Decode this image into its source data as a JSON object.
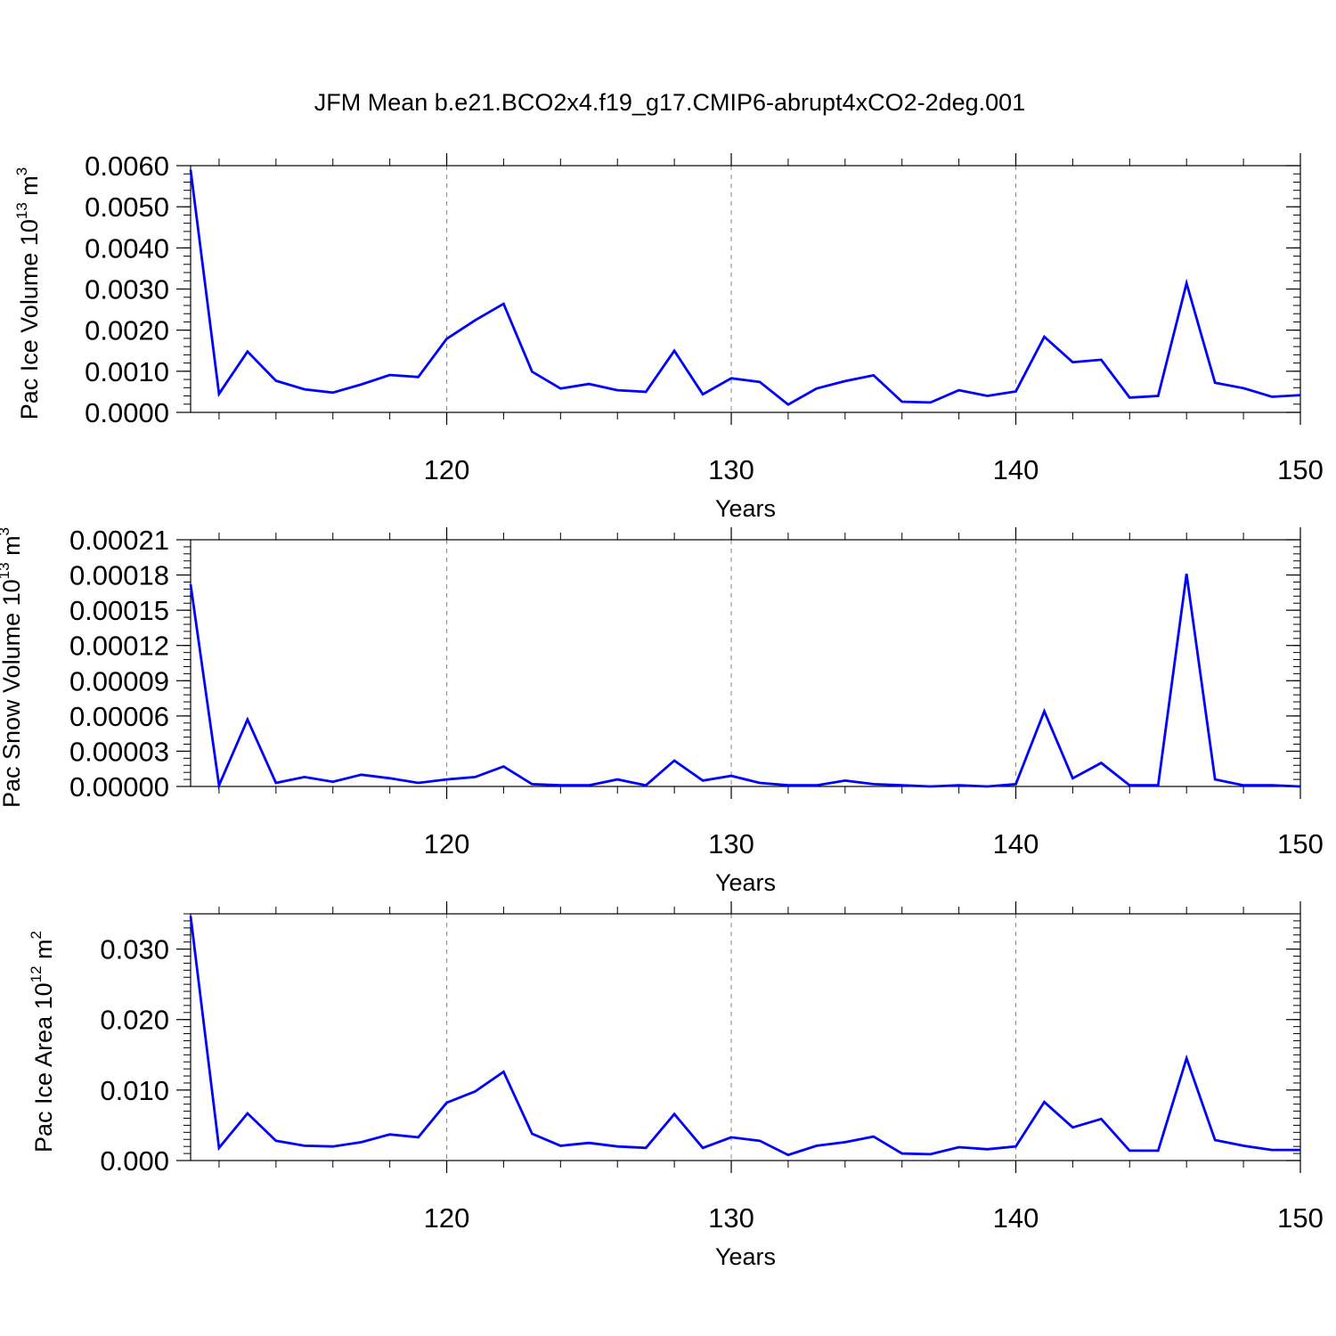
{
  "title": "JFM Mean b.e21.BCO2x4.f19_g17.CMIP6-abrupt4xCO2-2deg.001",
  "line_color": "#0000ff",
  "grid_color": "#888888",
  "chart_data": [
    {
      "type": "line",
      "xlabel": "Years",
      "ylabel_parts": [
        "Pac Ice Volume 10",
        "13",
        " m",
        "3"
      ],
      "ylim": [
        0,
        0.006
      ],
      "xlim": [
        111,
        150
      ],
      "x_ticks": [
        120,
        130,
        140,
        150
      ],
      "y_ticks": [
        "0.0000",
        "0.0010",
        "0.0020",
        "0.0030",
        "0.0040",
        "0.0050",
        "0.0060"
      ],
      "y_tick_values": [
        0,
        0.001,
        0.002,
        0.003,
        0.004,
        0.005,
        0.006
      ],
      "y_minor_step": 0.0002,
      "grid": "vertical dashed at major x ticks",
      "x": [
        111,
        112,
        113,
        114,
        115,
        116,
        117,
        118,
        119,
        120,
        121,
        122,
        123,
        124,
        125,
        126,
        127,
        128,
        129,
        130,
        131,
        132,
        133,
        134,
        135,
        136,
        137,
        138,
        139,
        140,
        141,
        142,
        143,
        144,
        145,
        146,
        147,
        148,
        149,
        150
      ],
      "values": [
        0.0059,
        0.00045,
        0.00148,
        0.00077,
        0.00056,
        0.00048,
        0.00068,
        0.00091,
        0.00086,
        0.00179,
        0.00224,
        0.00264,
        0.00099,
        0.00058,
        0.00069,
        0.00054,
        0.0005,
        0.0015,
        0.00044,
        0.00083,
        0.00074,
        0.00019,
        0.00058,
        0.00076,
        0.0009,
        0.00026,
        0.00024,
        0.00054,
        0.0004,
        0.00051,
        0.00184,
        0.00122,
        0.00128,
        0.00036,
        0.0004,
        0.00314,
        0.00072,
        0.00059,
        0.00038,
        0.00042
      ]
    },
    {
      "type": "line",
      "xlabel": "Years",
      "ylabel_parts": [
        "Pac Snow Volume 10",
        "13",
        " m",
        "3"
      ],
      "ylim": [
        0,
        0.00021
      ],
      "xlim": [
        111,
        150
      ],
      "x_ticks": [
        120,
        130,
        140,
        150
      ],
      "y_ticks": [
        "0.00000",
        "0.00003",
        "0.00006",
        "0.00009",
        "0.00012",
        "0.00015",
        "0.00018",
        "0.00021"
      ],
      "y_tick_values": [
        0,
        3e-05,
        6e-05,
        9e-05,
        0.00012,
        0.00015,
        0.00018,
        0.00021
      ],
      "y_minor_step": 6e-06,
      "grid": "vertical dashed at major x ticks",
      "x": [
        111,
        112,
        113,
        114,
        115,
        116,
        117,
        118,
        119,
        120,
        121,
        122,
        123,
        124,
        125,
        126,
        127,
        128,
        129,
        130,
        131,
        132,
        133,
        134,
        135,
        136,
        137,
        138,
        139,
        140,
        141,
        142,
        143,
        144,
        145,
        146,
        147,
        148,
        149,
        150
      ],
      "values": [
        0.000172,
        1e-06,
        5.7e-05,
        3e-06,
        8e-06,
        4e-06,
        1e-05,
        7e-06,
        3e-06,
        6e-06,
        8e-06,
        1.7e-05,
        2e-06,
        1e-06,
        1e-06,
        6e-06,
        1e-06,
        2.2e-05,
        5e-06,
        9e-06,
        3e-06,
        1e-06,
        1e-06,
        5e-06,
        2e-06,
        1e-06,
        0.0,
        1e-06,
        0.0,
        2e-06,
        6.4e-05,
        7e-06,
        2e-05,
        1e-06,
        1e-06,
        0.000181,
        6e-06,
        1e-06,
        1e-06,
        0.0
      ]
    },
    {
      "type": "line",
      "xlabel": "Years",
      "ylabel_parts": [
        "Pac Ice Area 10",
        "12",
        " m",
        "2"
      ],
      "ylim": [
        0,
        0.035
      ],
      "xlim": [
        111,
        150
      ],
      "x_ticks": [
        120,
        130,
        140,
        150
      ],
      "y_ticks": [
        "0.000",
        "0.010",
        "0.020",
        "0.030"
      ],
      "y_tick_values": [
        0,
        0.01,
        0.02,
        0.03
      ],
      "y_minor_step": 0.001,
      "grid": "vertical dashed at major x ticks",
      "x": [
        111,
        112,
        113,
        114,
        115,
        116,
        117,
        118,
        119,
        120,
        121,
        122,
        123,
        124,
        125,
        126,
        127,
        128,
        129,
        130,
        131,
        132,
        133,
        134,
        135,
        136,
        137,
        138,
        139,
        140,
        141,
        142,
        143,
        144,
        145,
        146,
        147,
        148,
        149,
        150
      ],
      "values": [
        0.0347,
        0.0018,
        0.0067,
        0.0028,
        0.0021,
        0.002,
        0.0026,
        0.0037,
        0.0033,
        0.0082,
        0.0098,
        0.0126,
        0.0038,
        0.0021,
        0.0025,
        0.002,
        0.0018,
        0.0066,
        0.0018,
        0.0033,
        0.0028,
        0.0008,
        0.0021,
        0.0026,
        0.0034,
        0.001,
        0.0009,
        0.0019,
        0.0016,
        0.002,
        0.0083,
        0.0047,
        0.0059,
        0.0014,
        0.0014,
        0.0145,
        0.0029,
        0.0021,
        0.0015,
        0.0015
      ]
    }
  ]
}
